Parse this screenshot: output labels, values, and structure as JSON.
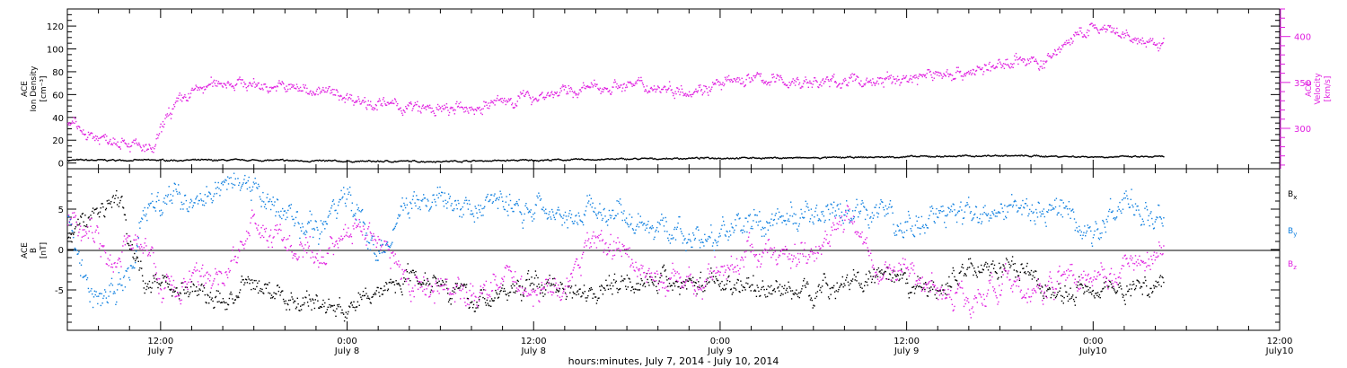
{
  "colors": {
    "black": "#000000",
    "magenta": "#e020e0",
    "blue": "#1080e0"
  },
  "chart_data": [
    {
      "type": "scatter",
      "panel": "top",
      "ylabel_left": [
        "ACE",
        "Ion Density"
      ],
      "ylabel_left_units": "[cm⁻³]",
      "ylabel_right": [
        "ACE",
        "Velocity"
      ],
      "ylabel_right_units": "[km/s]",
      "y_left_range": [
        -5,
        135
      ],
      "y_left_ticks": [
        "0",
        "20",
        "40",
        "60",
        "80",
        "100",
        "120"
      ],
      "y_right_range": [
        256,
        430
      ],
      "y_right_ticks": [
        "300",
        "350",
        "400"
      ],
      "x_range_hours": [
        0,
        78
      ],
      "series": [
        {
          "name": "Ion Density",
          "axis": "left",
          "color": "#000000",
          "x": [
            0,
            6,
            12,
            18,
            24,
            30,
            36,
            42,
            48,
            54,
            60,
            66,
            70.5
          ],
          "y": [
            3,
            3,
            3,
            2,
            2,
            3,
            4,
            5,
            5,
            6,
            7,
            6,
            6
          ]
        },
        {
          "name": "Velocity",
          "axis": "right",
          "color": "#e020e0",
          "x": [
            0,
            2,
            3.5,
            4.5,
            5.5,
            6.5,
            8,
            10,
            12,
            14,
            16,
            18,
            20,
            22,
            24,
            26,
            28,
            30,
            32,
            34,
            36,
            38,
            40,
            42,
            44,
            46,
            48,
            50,
            52,
            54,
            56,
            58,
            60,
            61,
            62,
            63,
            64,
            66,
            68,
            70,
            70.5
          ],
          "y": [
            305,
            290,
            290,
            280,
            275,
            318,
            340,
            352,
            348,
            345,
            342,
            335,
            327,
            323,
            320,
            322,
            330,
            336,
            340,
            345,
            348,
            345,
            343,
            348,
            355,
            352,
            350,
            352,
            352,
            355,
            360,
            362,
            368,
            378,
            372,
            372,
            392,
            410,
            400,
            390,
            395
          ]
        }
      ]
    },
    {
      "type": "scatter",
      "panel": "bottom",
      "ylabel": [
        "ACE",
        "B"
      ],
      "ylabel_units": "[nT]",
      "y_range": [
        -10,
        10
      ],
      "y_ticks": [
        "5",
        "0",
        "-5"
      ],
      "zero_line": true,
      "x_range_hours": [
        0,
        78
      ],
      "legend_position": "right",
      "legend": [
        {
          "label": "B",
          "sub": "x",
          "color": "#000000"
        },
        {
          "label": "B",
          "sub": "y",
          "color": "#1080e0"
        },
        {
          "label": "B",
          "sub": "z",
          "color": "#e020e0"
        }
      ],
      "series": [
        {
          "name": "Bx",
          "color": "#000000",
          "x": [
            0,
            1.5,
            2.5,
            3.5,
            4,
            5,
            6,
            8,
            10,
            12,
            14,
            16,
            18,
            20,
            22,
            24,
            26,
            28,
            30,
            32,
            34,
            36,
            38,
            40,
            42,
            44,
            46,
            48,
            50,
            52,
            54,
            56,
            58,
            60,
            62,
            64,
            66,
            68,
            70.5
          ],
          "y": [
            1.5,
            4.5,
            5.5,
            6,
            0,
            -3.5,
            -4,
            -5,
            -6.5,
            -4,
            -6,
            -6.5,
            -7.5,
            -5,
            -3,
            -3.5,
            -6.5,
            -5.5,
            -4,
            -4.5,
            -5,
            -3.5,
            -4,
            -4,
            -4,
            -4.5,
            -5,
            -5,
            -4,
            -3.5,
            -4.5,
            -5,
            -2,
            -2,
            -3.5,
            -6,
            -4,
            -5,
            -4
          ]
        },
        {
          "name": "By",
          "color": "#1080e0",
          "x": [
            0,
            1.5,
            3,
            4,
            5,
            6,
            8,
            10,
            12,
            14,
            16,
            18,
            20,
            22,
            24,
            26,
            28,
            30,
            32,
            34,
            36,
            38,
            40,
            42,
            44,
            46,
            48,
            50,
            52,
            54,
            56,
            58,
            60,
            62,
            64,
            66,
            68,
            70.5
          ],
          "y": [
            4,
            -6,
            -5,
            -3,
            5,
            6,
            6.5,
            8.5,
            8,
            4,
            2,
            7,
            -1,
            6,
            6,
            5,
            6,
            5,
            5,
            5,
            4,
            3,
            1,
            2,
            3,
            4,
            4,
            4,
            5,
            3,
            4,
            4,
            6,
            4,
            5,
            2,
            6,
            5
          ]
        },
        {
          "name": "Bz",
          "color": "#e020e0",
          "x": [
            0,
            1.5,
            3,
            4,
            5,
            6,
            8,
            10,
            12,
            14,
            16,
            18,
            20,
            22,
            24,
            26,
            28,
            30,
            32,
            34,
            36,
            38,
            40,
            42,
            44,
            46,
            48,
            50,
            52,
            54,
            56,
            58,
            60,
            62,
            64,
            66,
            68,
            70.5
          ],
          "y": [
            4,
            3,
            -2,
            1,
            1,
            -5,
            -4,
            -3,
            3,
            1,
            -2,
            3,
            2,
            -5,
            -4,
            -6,
            -3,
            -5,
            -5,
            2,
            -1,
            -4,
            -4,
            -3,
            0,
            -1,
            0,
            5,
            -3,
            -2,
            -5,
            -6,
            -4,
            -6,
            -3,
            -3,
            -2,
            0
          ]
        }
      ]
    }
  ],
  "x_axis": {
    "ticks": [
      {
        "time": "12:00",
        "date": "July 7",
        "hour": 6
      },
      {
        "time": "0:00",
        "date": "July 8",
        "hour": 18
      },
      {
        "time": "12:00",
        "date": "July 8",
        "hour": 30
      },
      {
        "time": "0:00",
        "date": "July 9",
        "hour": 42
      },
      {
        "time": "12:00",
        "date": "July 9",
        "hour": 54
      },
      {
        "time": "0:00",
        "date": "July10",
        "hour": 66
      },
      {
        "time": "12:00",
        "date": "July10",
        "hour": 78
      }
    ],
    "caption": "hours:minutes, July  7, 2014 - July 10, 2014"
  }
}
